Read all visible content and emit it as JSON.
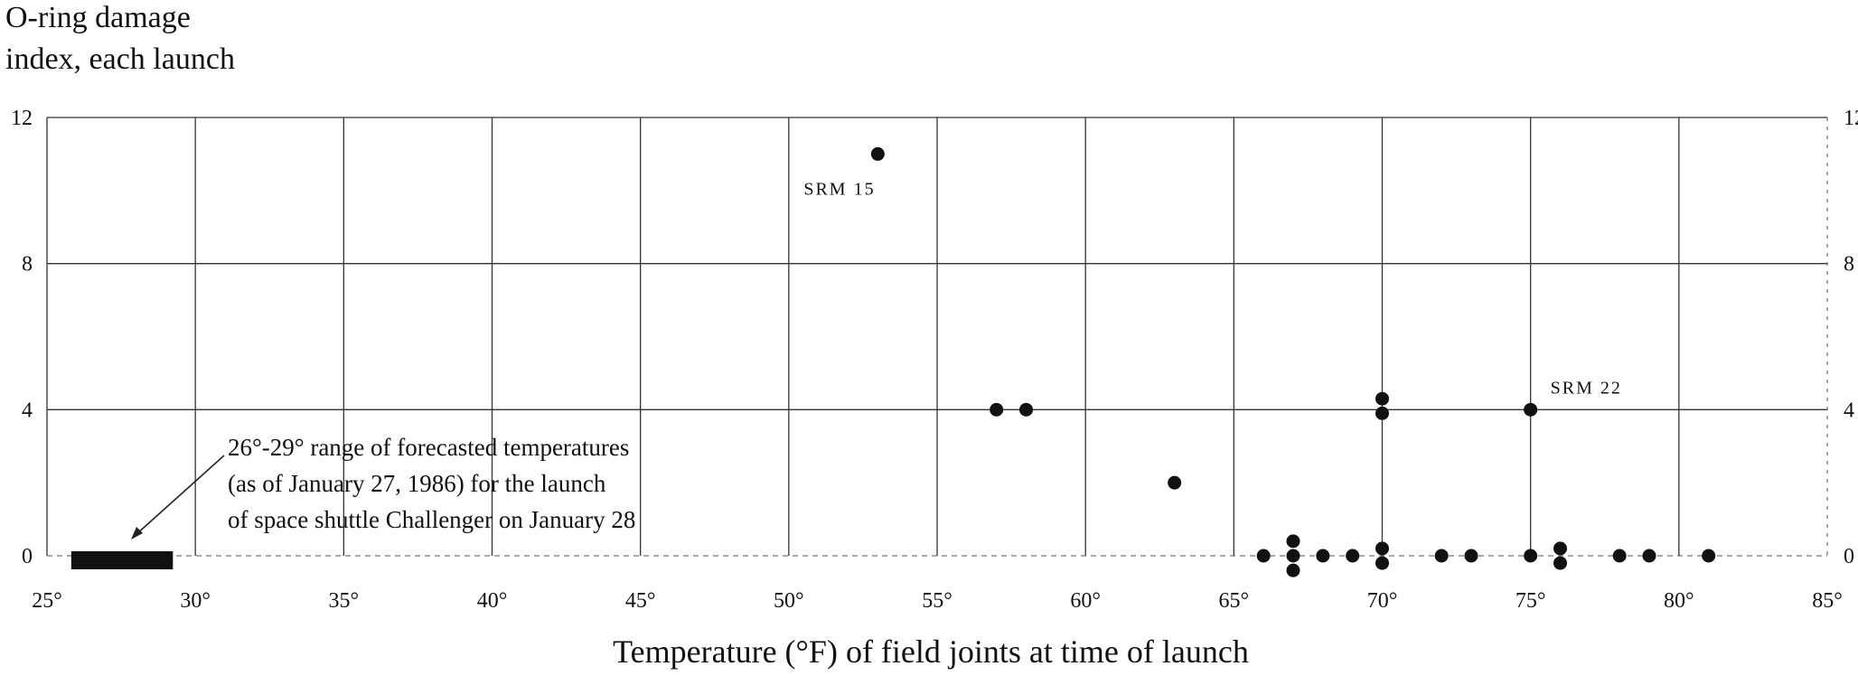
{
  "chart_data": {
    "type": "scatter",
    "title": "",
    "ylabel": [
      "O-ring damage",
      "index, each launch"
    ],
    "xlabel": "Temperature (°F) of field joints at time of launch",
    "xlim": [
      25,
      85
    ],
    "ylim": [
      0,
      12
    ],
    "x_ticks": [
      25,
      30,
      35,
      40,
      45,
      50,
      55,
      60,
      65,
      70,
      75,
      80,
      85
    ],
    "x_tick_labels": [
      "25°",
      "30°",
      "35°",
      "40°",
      "45°",
      "50°",
      "55°",
      "60°",
      "65°",
      "70°",
      "75°",
      "80°",
      "85°"
    ],
    "y_ticks": [
      0,
      4,
      8,
      12
    ],
    "y_tick_labels": [
      "0",
      "4",
      "8",
      "12"
    ],
    "grid": true,
    "points": [
      {
        "x": 53,
        "y": 11
      },
      {
        "x": 57,
        "y": 4
      },
      {
        "x": 58,
        "y": 4
      },
      {
        "x": 63,
        "y": 2
      },
      {
        "x": 66,
        "y": 0
      },
      {
        "x": 67,
        "y": 0.4
      },
      {
        "x": 67,
        "y": 0
      },
      {
        "x": 67,
        "y": -0.4
      },
      {
        "x": 68,
        "y": 0
      },
      {
        "x": 69,
        "y": 0
      },
      {
        "x": 70,
        "y": 4.3
      },
      {
        "x": 70,
        "y": 3.9
      },
      {
        "x": 70,
        "y": 0.2
      },
      {
        "x": 70,
        "y": -0.2
      },
      {
        "x": 72,
        "y": 0
      },
      {
        "x": 73,
        "y": 0
      },
      {
        "x": 75,
        "y": 4
      },
      {
        "x": 75,
        "y": 0
      },
      {
        "x": 76,
        "y": 0.2
      },
      {
        "x": 76,
        "y": -0.2
      },
      {
        "x": 78,
        "y": 0
      },
      {
        "x": 79,
        "y": 0
      },
      {
        "x": 81,
        "y": 0
      }
    ],
    "forecast_range": {
      "x0": 26,
      "x1": 29,
      "y": 0
    },
    "annotations": [
      {
        "text": "SRM 15",
        "x": 53,
        "y": 11
      },
      {
        "text": "SRM 22",
        "x": 75,
        "y": 4
      }
    ],
    "note": [
      "26°-29° range of forecasted temperatures",
      "(as of January 27, 1986) for the launch",
      "of space shuttle Challenger on January 28"
    ]
  }
}
